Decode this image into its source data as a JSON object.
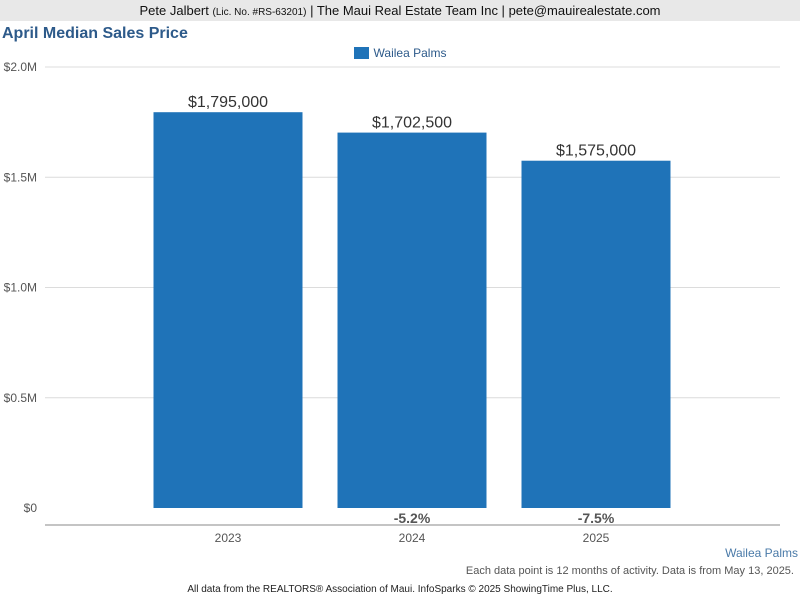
{
  "header": {
    "agent_name": "Pete Jalbert",
    "license": "(Lic. No. #RS-63201)",
    "company": "| The Maui Real Estate Team Inc |",
    "email": "pete@mauirealestate.com"
  },
  "legend": {
    "label": "Wailea Palms"
  },
  "footer": {
    "series_note": "Wailea Palms",
    "note": "Each data point is 12 months of activity. Data is from May 13, 2025.",
    "source": "All data from the REALTORS® Association of Maui. InfoSparks © 2025 ShowingTime Plus, LLC."
  },
  "chart_data": {
    "type": "bar",
    "title": "April Median Sales Price",
    "xlabel": "",
    "ylabel": "",
    "categories": [
      "2023",
      "2024",
      "2025"
    ],
    "series": [
      {
        "name": "Wailea Palms",
        "values": [
          1795000,
          1702500,
          1575000
        ],
        "data_labels": [
          "$1,795,000",
          "$1,702,500",
          "$1,575,000"
        ],
        "color": "#1f73b8"
      }
    ],
    "change_labels": [
      "",
      "-5.2%",
      "-7.5%"
    ],
    "ylim": [
      0,
      2000000
    ],
    "yticks": [
      0,
      500000,
      1000000,
      1500000,
      2000000
    ],
    "ytick_labels": [
      "$0",
      "$0.5M",
      "$1.0M",
      "$1.5M",
      "$2.0M"
    ],
    "grid": true,
    "legend_position": "top-center"
  }
}
